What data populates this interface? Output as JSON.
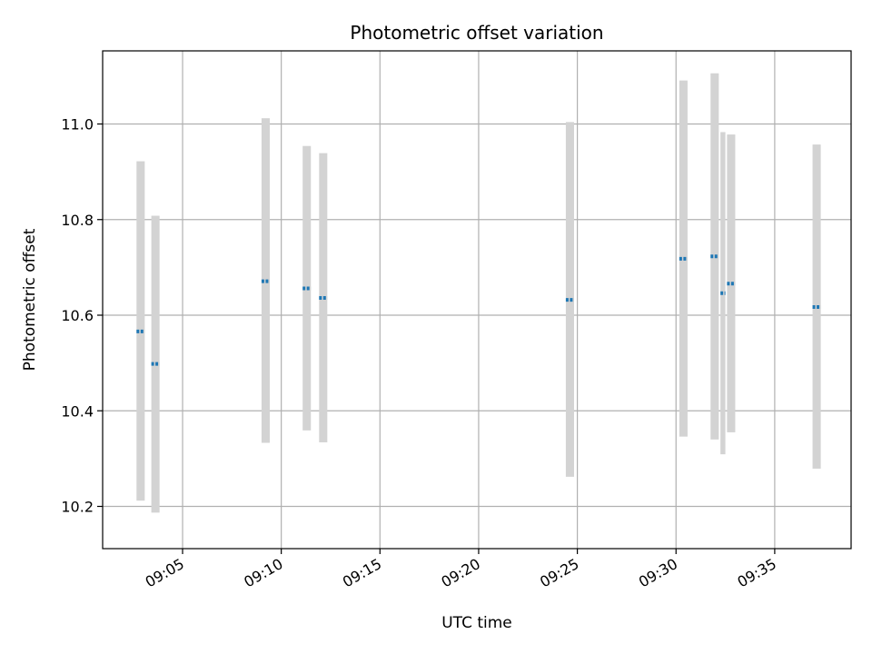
{
  "chart_data": {
    "type": "scatter",
    "title": "Photometric offset variation",
    "xlabel": "UTC time",
    "ylabel": "Photometric offset",
    "x_ticks": [
      "09:05",
      "09:10",
      "09:15",
      "09:20",
      "09:25",
      "09:30",
      "09:35"
    ],
    "y_ticks": [
      "10.2",
      "10.4",
      "10.6",
      "10.8",
      "11.0"
    ],
    "grid": true,
    "colors": {
      "marker": "#1f77b4",
      "errorbar": "#d3d3d3",
      "grid": "#b0b0b0"
    },
    "series": [
      {
        "points": [
          {
            "t": "09:02:40",
            "t_end": "09:03:05",
            "y": 10.566,
            "err_low": 10.212,
            "err_high": 10.922
          },
          {
            "t": "09:03:25",
            "t_end": "09:03:50",
            "y": 10.498,
            "err_low": 10.187,
            "err_high": 10.808
          },
          {
            "t": "09:09:00",
            "t_end": "09:09:25",
            "y": 10.671,
            "err_low": 10.333,
            "err_high": 11.012
          },
          {
            "t": "09:11:05",
            "t_end": "09:11:30",
            "y": 10.656,
            "err_low": 10.359,
            "err_high": 10.954
          },
          {
            "t": "09:11:55",
            "t_end": "09:12:20",
            "y": 10.636,
            "err_low": 10.334,
            "err_high": 10.939
          },
          {
            "t": "09:24:25",
            "t_end": "09:24:50",
            "y": 10.632,
            "err_low": 10.262,
            "err_high": 11.004
          },
          {
            "t": "09:30:10",
            "t_end": "09:30:35",
            "y": 10.718,
            "err_low": 10.346,
            "err_high": 11.091
          },
          {
            "t": "09:31:45",
            "t_end": "09:32:10",
            "y": 10.723,
            "err_low": 10.34,
            "err_high": 11.106
          },
          {
            "t": "09:32:15",
            "t_end": "09:32:30",
            "y": 10.646,
            "err_low": 10.309,
            "err_high": 10.983
          },
          {
            "t": "09:32:35",
            "t_end": "09:33:00",
            "y": 10.666,
            "err_low": 10.355,
            "err_high": 10.978
          },
          {
            "t": "09:36:55",
            "t_end": "09:37:20",
            "y": 10.617,
            "err_low": 10.279,
            "err_high": 10.957
          }
        ]
      }
    ]
  }
}
